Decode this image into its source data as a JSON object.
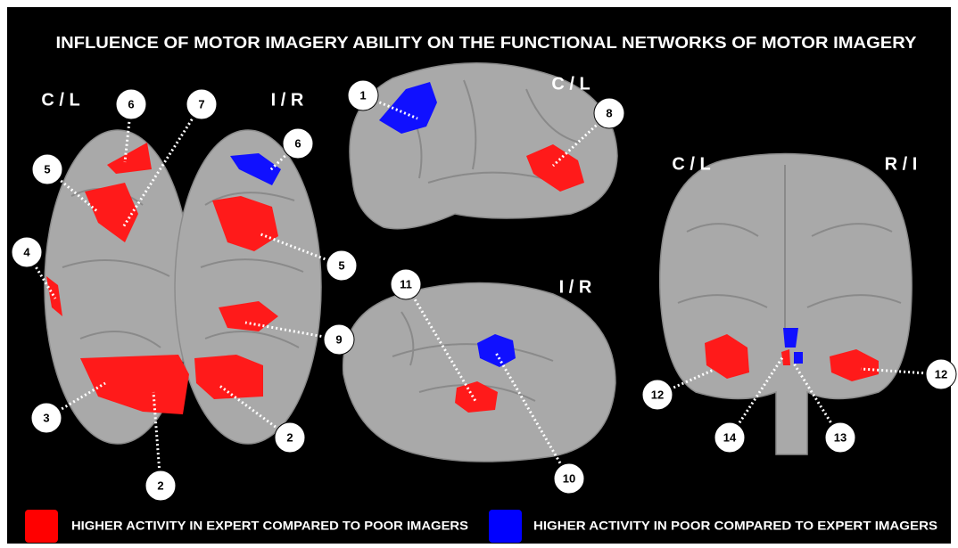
{
  "title": "INFLUENCE OF MOTOR IMAGERY ABILITY ON THE FUNCTIONAL NETWORKS OF MOTOR IMAGERY",
  "views": [
    {
      "labels": [
        "C / L",
        "I / R"
      ],
      "callouts": [
        "6",
        "7",
        "6",
        "5",
        "5",
        "4",
        "9",
        "3",
        "2",
        "2"
      ]
    },
    {
      "labels": [
        "C / L"
      ],
      "callouts": [
        "1",
        "8"
      ]
    },
    {
      "labels": [
        "I / R"
      ],
      "callouts": [
        "11",
        "10"
      ]
    },
    {
      "labels": [
        "C / L",
        "R / I"
      ],
      "callouts": [
        "12",
        "12",
        "14",
        "13"
      ]
    }
  ],
  "legend": [
    {
      "label": "HIGHER ACTIVITY IN EXPERT COMPARED TO POOR IMAGERS",
      "color": "#ff0000"
    },
    {
      "label": "HIGHER ACTIVITY IN POOR COMPARED TO EXPERT IMAGERS",
      "color": "#0000ff"
    }
  ]
}
